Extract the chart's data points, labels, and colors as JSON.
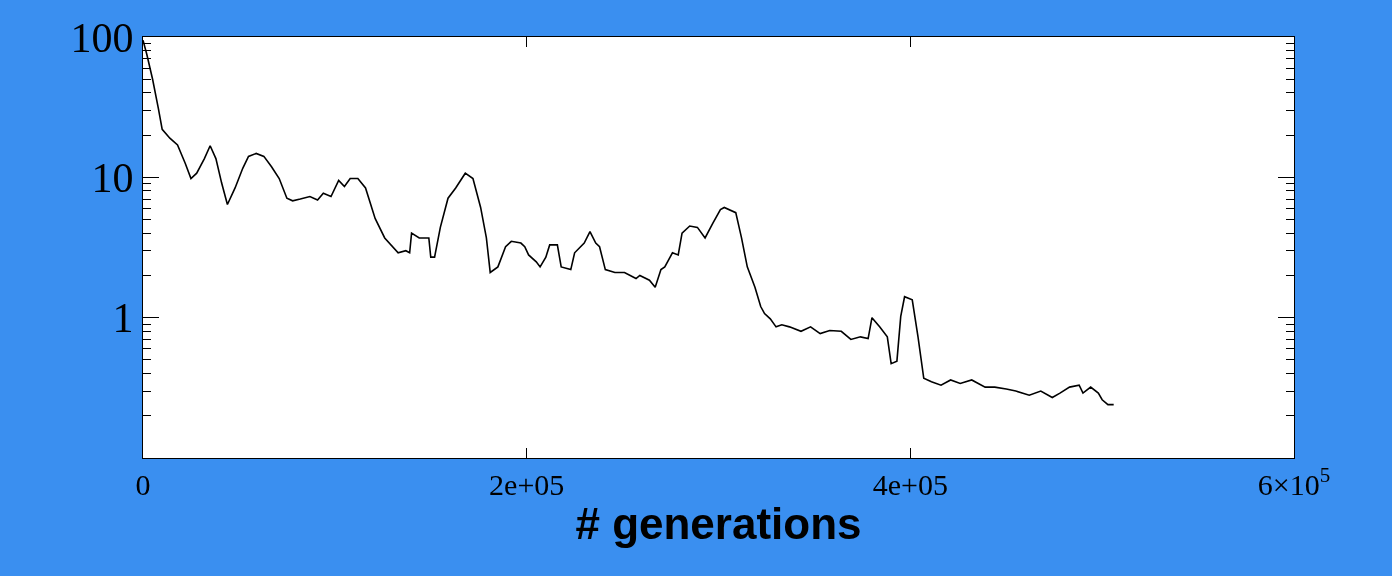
{
  "chart_data": {
    "type": "line",
    "xlabel": "# generations",
    "x": [
      0,
      2000,
      5000,
      8000,
      10000,
      14000,
      18000,
      22000,
      25000,
      28000,
      32000,
      35000,
      38000,
      41000,
      44000,
      48000,
      52000,
      55000,
      59000,
      63000,
      67000,
      71000,
      75000,
      78000,
      82000,
      87000,
      91000,
      94000,
      98000,
      102000,
      105000,
      108000,
      112000,
      116000,
      121000,
      126000,
      133000,
      137000,
      139000,
      140000,
      144000,
      149000,
      150000,
      152000,
      155000,
      159000,
      163000,
      168000,
      172000,
      176000,
      179000,
      181000,
      185000,
      189000,
      192000,
      197000,
      199000,
      201000,
      205000,
      207000,
      210000,
      212000,
      216000,
      218000,
      223000,
      225000,
      230000,
      233000,
      236000,
      238000,
      241000,
      246000,
      251000,
      257000,
      259000,
      264000,
      267000,
      270000,
      272000,
      276000,
      279000,
      281000,
      285000,
      289000,
      293000,
      297000,
      301000,
      303000,
      309000,
      312000,
      315000,
      319000,
      322000,
      324000,
      327000,
      330000,
      333000,
      337000,
      343000,
      348000,
      353000,
      358000,
      364000,
      369000,
      374000,
      378000,
      380000,
      384000,
      388000,
      390000,
      393000,
      395000,
      397000,
      401000,
      404000,
      407000,
      411000,
      416000,
      421000,
      426000,
      432000,
      439000,
      444000,
      450000,
      455000,
      462000,
      468000,
      474000,
      478000,
      483000,
      488000,
      490000,
      494000,
      498000,
      500000,
      503000,
      506000
    ],
    "values": [
      95,
      75,
      50,
      31,
      22,
      19,
      17,
      12.6,
      9.8,
      10.7,
      13.6,
      16.8,
      13.6,
      9.1,
      6.4,
      8.4,
      11.6,
      14.1,
      14.8,
      14.1,
      11.9,
      9.8,
      7.1,
      6.8,
      7.0,
      7.3,
      6.9,
      7.7,
      7.3,
      9.5,
      8.6,
      9.8,
      9.8,
      8.4,
      5.1,
      3.7,
      2.9,
      3.0,
      2.9,
      4.0,
      3.7,
      3.7,
      2.7,
      2.7,
      4.4,
      7.1,
      8.4,
      10.7,
      9.8,
      6.1,
      3.7,
      2.1,
      2.3,
      3.2,
      3.5,
      3.4,
      3.2,
      2.8,
      2.5,
      2.3,
      2.7,
      3.3,
      3.3,
      2.3,
      2.2,
      2.9,
      3.4,
      4.1,
      3.4,
      3.2,
      2.2,
      2.1,
      2.1,
      1.9,
      2.0,
      1.85,
      1.65,
      2.2,
      2.3,
      2.9,
      2.8,
      4.0,
      4.5,
      4.4,
      3.7,
      4.7,
      5.9,
      6.1,
      5.6,
      3.7,
      2.3,
      1.65,
      1.2,
      1.07,
      0.98,
      0.86,
      0.89,
      0.86,
      0.8,
      0.86,
      0.77,
      0.81,
      0.8,
      0.7,
      0.73,
      0.71,
      1.0,
      0.86,
      0.73,
      0.47,
      0.49,
      1.02,
      1.41,
      1.34,
      0.73,
      0.37,
      0.35,
      0.33,
      0.36,
      0.34,
      0.36,
      0.32,
      0.32,
      0.31,
      0.3,
      0.28,
      0.3,
      0.27,
      0.29,
      0.32,
      0.33,
      0.29,
      0.32,
      0.29,
      0.26,
      0.24,
      0.24
    ],
    "color": "#000000",
    "log": true,
    "xlim": [
      0,
      600000
    ],
    "xticks": [
      {
        "value": 0,
        "label": "0"
      },
      {
        "value": 200000,
        "label": "2e+05"
      },
      {
        "value": 400000,
        "label": "4e+05"
      },
      {
        "value": 600000,
        "label": "6×10$^{5}$"
      }
    ],
    "ylim": [
      0.1,
      100
    ],
    "yticks": [
      1,
      10,
      100
    ],
    "legend": false
  }
}
